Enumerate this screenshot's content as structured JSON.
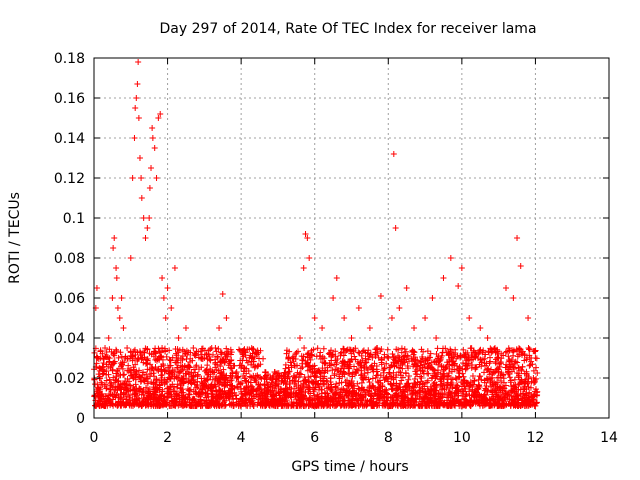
{
  "chart_data": {
    "type": "scatter",
    "title": "Day 297 of 2014, Rate Of TEC Index for receiver lama",
    "xlabel": "GPS time / hours",
    "ylabel": "ROTI / TECUs",
    "xlim": [
      0,
      14
    ],
    "ylim": [
      0,
      0.18
    ],
    "x_ticks": [
      0,
      2,
      4,
      6,
      8,
      10,
      12,
      14
    ],
    "x_tick_labels": [
      "0",
      "2",
      "4",
      "6",
      "8",
      "10",
      "12",
      "14"
    ],
    "y_ticks": [
      0,
      0.02,
      0.04,
      0.06,
      0.08,
      0.1,
      0.12,
      0.14,
      0.16,
      0.18
    ],
    "y_tick_labels": [
      "0",
      "0.02",
      "0.04",
      "0.06",
      "0.08",
      "0.1",
      "0.12",
      "0.14",
      "0.16",
      "0.18"
    ],
    "grid": true,
    "marker": "+",
    "color": "#ff0000",
    "series": [
      {
        "name": "ROTI",
        "x": [
          0.05,
          0.08,
          0.1,
          0.15,
          0.2,
          0.3,
          0.4,
          0.45,
          0.5,
          0.52,
          0.55,
          0.6,
          0.62,
          0.65,
          0.7,
          0.75,
          0.8,
          0.85,
          0.9,
          1.0,
          1.05,
          1.1,
          1.12,
          1.15,
          1.18,
          1.2,
          1.22,
          1.25,
          1.28,
          1.3,
          1.35,
          1.4,
          1.45,
          1.5,
          1.52,
          1.55,
          1.58,
          1.6,
          1.65,
          1.7,
          1.75,
          1.8,
          1.85,
          1.9,
          1.95,
          2.0,
          2.1,
          2.2,
          2.3,
          2.5,
          2.7,
          3.0,
          3.2,
          3.4,
          3.5,
          3.6,
          3.7,
          4.0,
          4.2,
          4.5,
          5.0,
          5.3,
          5.6,
          5.7,
          5.75,
          5.8,
          5.85,
          6.0,
          6.2,
          6.5,
          6.6,
          6.8,
          7.0,
          7.2,
          7.5,
          7.7,
          7.8,
          7.9,
          8.0,
          8.1,
          8.15,
          8.2,
          8.3,
          8.5,
          8.7,
          9.0,
          9.2,
          9.3,
          9.5,
          9.7,
          9.9,
          10.0,
          10.2,
          10.5,
          10.7,
          10.9,
          11.0,
          11.2,
          11.4,
          11.5,
          11.6,
          11.8,
          12.0
        ],
        "y": [
          0.055,
          0.065,
          0.03,
          0.02,
          0.012,
          0.035,
          0.04,
          0.025,
          0.06,
          0.085,
          0.09,
          0.075,
          0.07,
          0.055,
          0.05,
          0.06,
          0.045,
          0.03,
          0.035,
          0.08,
          0.12,
          0.14,
          0.155,
          0.16,
          0.167,
          0.178,
          0.15,
          0.13,
          0.12,
          0.11,
          0.1,
          0.09,
          0.095,
          0.1,
          0.115,
          0.125,
          0.145,
          0.14,
          0.135,
          0.12,
          0.15,
          0.152,
          0.07,
          0.06,
          0.05,
          0.065,
          0.055,
          0.075,
          0.04,
          0.045,
          0.035,
          0.03,
          0.035,
          0.045,
          0.062,
          0.05,
          0.02,
          0.025,
          0.018,
          0.015,
          0.02,
          0.03,
          0.04,
          0.075,
          0.092,
          0.09,
          0.08,
          0.05,
          0.045,
          0.06,
          0.07,
          0.05,
          0.04,
          0.055,
          0.045,
          0.035,
          0.061,
          0.025,
          0.03,
          0.05,
          0.132,
          0.095,
          0.055,
          0.065,
          0.045,
          0.05,
          0.06,
          0.04,
          0.07,
          0.08,
          0.066,
          0.075,
          0.05,
          0.045,
          0.04,
          0.035,
          0.03,
          0.065,
          0.06,
          0.09,
          0.076,
          0.05,
          0.03
        ]
      }
    ],
    "baseline_noise_range": [
      0.006,
      0.035
    ]
  }
}
